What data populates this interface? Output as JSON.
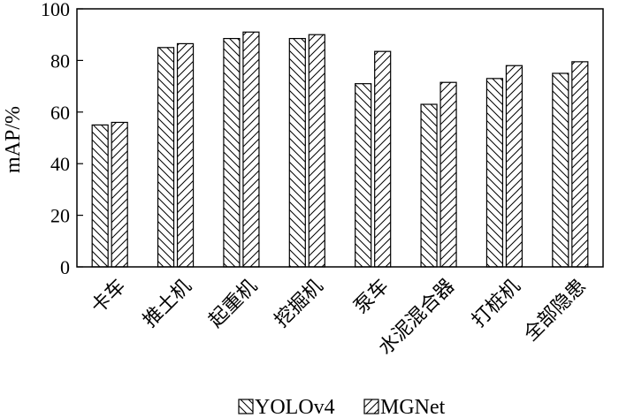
{
  "chart_data": {
    "type": "bar",
    "categories": [
      "卡车",
      "推土机",
      "起重机",
      "挖掘机",
      "泵车",
      "水泥混合器",
      "打桩机",
      "全部隐患"
    ],
    "series": [
      {
        "name": "YOLOv4",
        "values": [
          55,
          85,
          88.5,
          88.5,
          71,
          63,
          73,
          75
        ],
        "pattern": "backslash"
      },
      {
        "name": "MGNet",
        "values": [
          56,
          86.5,
          91,
          90,
          83.5,
          71.5,
          78,
          79.5
        ],
        "pattern": "slash"
      }
    ],
    "title": "",
    "xlabel": "",
    "ylabel": "mAP/%",
    "ylim": [
      0,
      100
    ],
    "yticks": [
      0,
      20,
      40,
      60,
      80,
      100
    ],
    "grid": false,
    "legend_position": "bottom"
  }
}
